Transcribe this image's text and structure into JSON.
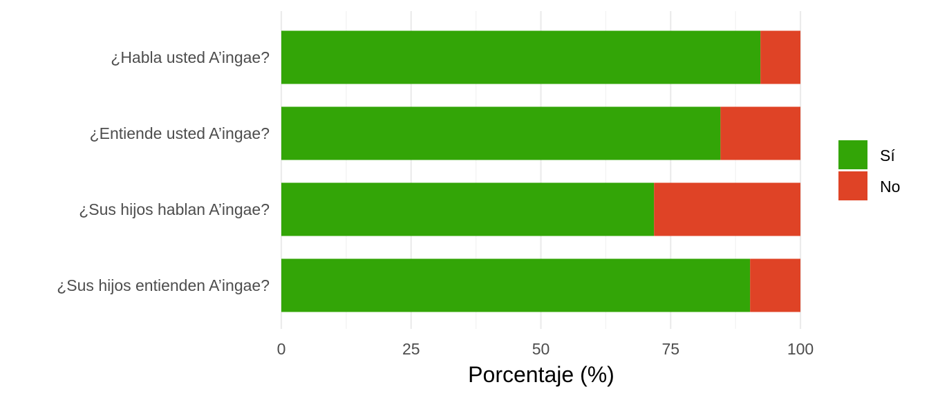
{
  "chart_data": {
    "type": "bar",
    "orientation": "horizontal",
    "stacked": true,
    "categories": [
      "¿Habla usted A’ingae?",
      "¿Entiende usted A’ingae?",
      "¿Sus hijos hablan A’ingae?",
      "¿Sus hijos entienden A’ingae?"
    ],
    "series": [
      {
        "name": "Sí",
        "color": "#33a507",
        "values": [
          92.3,
          84.6,
          71.8,
          90.3
        ]
      },
      {
        "name": "No",
        "color": "#df4326",
        "values": [
          7.7,
          15.4,
          28.2,
          9.7
        ]
      }
    ],
    "xlabel": "Porcentaje (%)",
    "ylabel": "",
    "xlim": [
      0,
      100
    ],
    "xticks": [
      "0",
      "25",
      "50",
      "75",
      "100"
    ],
    "grid": true,
    "legend": "right"
  }
}
